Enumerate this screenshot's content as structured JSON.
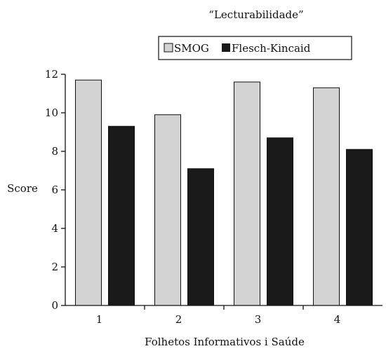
{
  "chart_data": {
    "type": "bar",
    "title": "“Lecturabilidade”",
    "xlabel": "Folhetos Informativos i Saúde",
    "ylabel": "Score",
    "categories": [
      "1",
      "2",
      "3",
      "4"
    ],
    "ylim": [
      0,
      12
    ],
    "yticks": [
      0,
      2,
      4,
      6,
      8,
      10,
      12
    ],
    "grid": false,
    "legend_position": "top-right",
    "series": [
      {
        "name": "SMOG",
        "values": [
          11.7,
          9.9,
          11.6,
          11.3
        ],
        "color": "#d3d3d3"
      },
      {
        "name": "Flesch-Kincaid",
        "values": [
          9.3,
          7.1,
          8.7,
          8.1
        ],
        "color": "#1a1a1a"
      }
    ]
  }
}
